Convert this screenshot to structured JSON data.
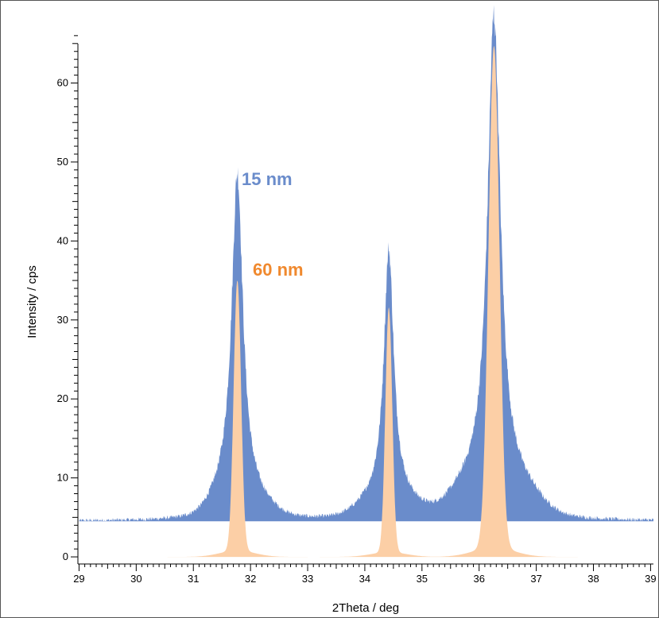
{
  "chart_data": {
    "type": "area",
    "title": "",
    "xlabel": "2Theta / deg",
    "ylabel": "Intensity / cps",
    "xlim": [
      28.98,
      39.05
    ],
    "ylim": [
      -0.9,
      68.5
    ],
    "x_ticks": [
      29,
      30,
      31,
      32,
      33,
      34,
      35,
      36,
      37,
      38,
      39
    ],
    "y_ticks": [
      0,
      10,
      20,
      30,
      40,
      50,
      60
    ],
    "grid": false,
    "legend": "inline labels near first peak",
    "series": [
      {
        "name": "15 nm",
        "label": "15 nm",
        "color": "#6A8CCB",
        "baseline": 4.5,
        "noise": 0.25,
        "peaks": [
          {
            "center": 31.77,
            "height": 41.0,
            "width": 0.12
          },
          {
            "center": 34.42,
            "height": 31.5,
            "width": 0.105
          },
          {
            "center": 36.26,
            "height": 61.0,
            "width": 0.14
          }
        ],
        "bumps": [
          {
            "center": 31.55,
            "height": 2.6,
            "width": 0.25
          },
          {
            "center": 32.05,
            "height": 2.0,
            "width": 0.3
          },
          {
            "center": 34.15,
            "height": 1.8,
            "width": 0.3
          },
          {
            "center": 34.65,
            "height": 1.8,
            "width": 0.3
          },
          {
            "center": 35.85,
            "height": 3.2,
            "width": 0.35
          },
          {
            "center": 36.7,
            "height": 3.2,
            "width": 0.35
          }
        ]
      },
      {
        "name": "60 nm",
        "label": "60 nm",
        "color": "#FCCFA6",
        "label_color": "#F0892E",
        "baseline": 0.0,
        "noise": 0.0,
        "peaks": [
          {
            "center": 31.77,
            "height": 34.2,
            "width": 0.065
          },
          {
            "center": 34.42,
            "height": 31.0,
            "width": 0.06
          },
          {
            "center": 36.26,
            "height": 63.5,
            "width": 0.095
          }
        ],
        "bumps": [
          {
            "center": 31.77,
            "height": 0.8,
            "width": 0.3
          },
          {
            "center": 34.42,
            "height": 0.6,
            "width": 0.3
          },
          {
            "center": 36.26,
            "height": 1.2,
            "width": 0.35
          }
        ]
      }
    ]
  }
}
